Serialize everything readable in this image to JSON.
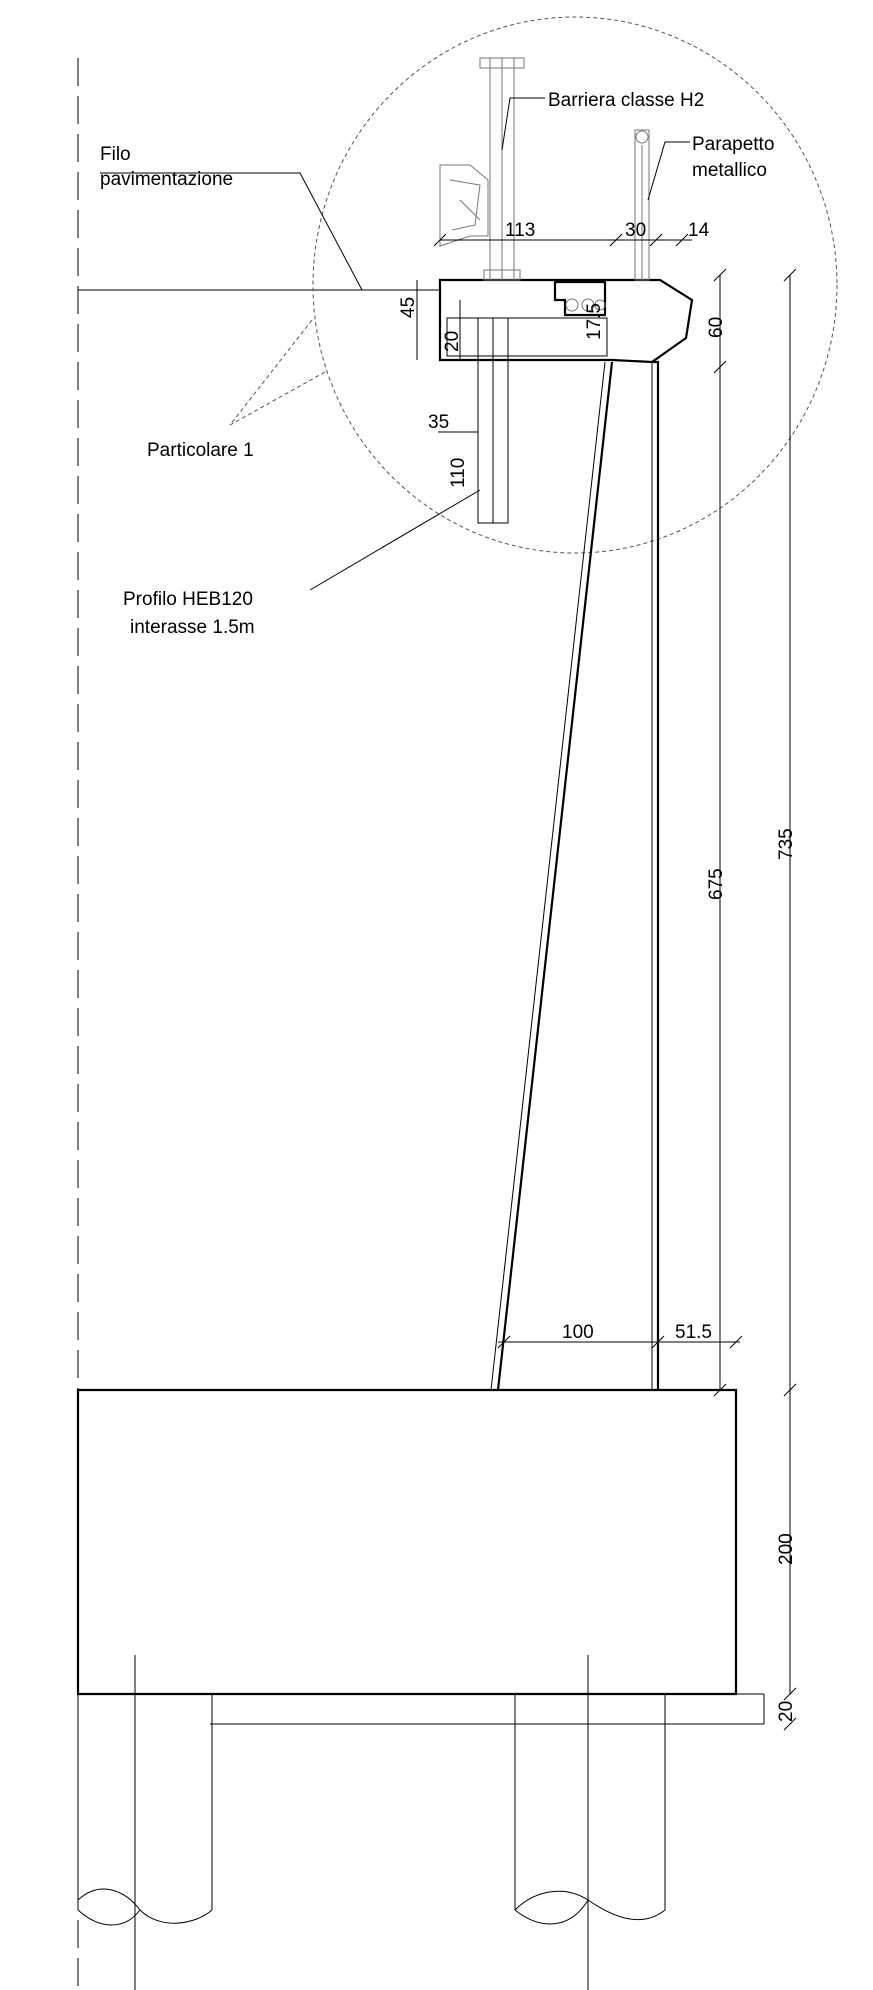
{
  "labels": {
    "filo_line1": "Filo",
    "filo_line2": "pavimentazione",
    "barriera": "Barriera classe H2",
    "parapetto_line1": "Parapetto",
    "parapetto_line2": "metallico",
    "particolare": "Particolare 1",
    "profilo_line1": "Profilo HEB120",
    "profilo_line2": "interasse 1.5m"
  },
  "dimensions": {
    "d113": "113",
    "d30": "30",
    "d14": "14",
    "d45": "45",
    "d20a": "20",
    "d175": "17.5",
    "d60": "60",
    "d35": "35",
    "d110": "110",
    "d675": "675",
    "d735": "735",
    "d100": "100",
    "d515": "51.5",
    "d200": "200",
    "d20b": "20"
  }
}
